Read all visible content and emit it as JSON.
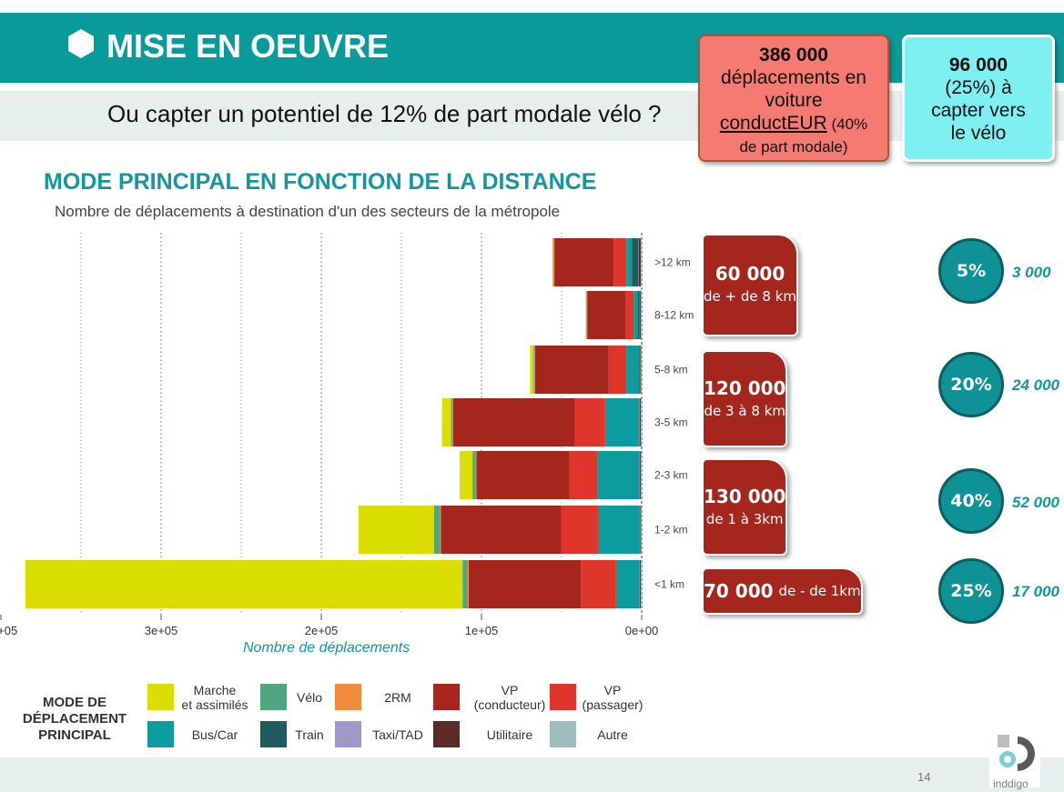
{
  "header": {
    "title": "MISE EN OEUVRE",
    "icon": "hexagon-icon"
  },
  "question": "Ou capter un potentiel de 12% de part modale vélo ?",
  "callouts": {
    "car": {
      "number": "386 000",
      "line1": "déplacements en",
      "line2": "voiture",
      "underlined": "conductEUR",
      "rest": " (40%",
      "line4": "de part modale)",
      "color": "#f57b72"
    },
    "bike": {
      "number": "96 000",
      "line1": "(25%) à",
      "line2": "capter vers",
      "line3": "le vélo",
      "color": "#7ef0f2"
    }
  },
  "chart_data": {
    "type": "bar",
    "orientation": "horizontal",
    "stacked": true,
    "title": "MODE PRINCIPAL EN FONCTION DE LA DISTANCE",
    "subtitle": "Nombre de déplacements à destination d'un des secteurs de la métropole",
    "xlabel": "Nombre de déplacements",
    "x_reversed": true,
    "xlim": [
      0,
      400000
    ],
    "x_ticks": [
      {
        "value": 400000,
        "label": "4e+05"
      },
      {
        "value": 300000,
        "label": "3e+05"
      },
      {
        "value": 200000,
        "label": "2e+05"
      },
      {
        "value": 100000,
        "label": "1e+05"
      },
      {
        "value": 0,
        "label": "0e+00"
      }
    ],
    "grid": "dotted vertical",
    "categories": [
      ">12 km",
      "8-12 km",
      "5-8 km",
      "3-5 km",
      "2-3 km",
      "1-2 km",
      "<1 km"
    ],
    "series": [
      {
        "name": "Autre",
        "color": "#9fbdbd",
        "values": [
          600,
          500,
          400,
          600,
          500,
          400,
          500
        ]
      },
      {
        "name": "Utilitaire",
        "color": "#5c2a27",
        "values": [
          1200,
          600,
          500,
          700,
          600,
          500,
          600
        ]
      },
      {
        "name": "Taxi/TAD",
        "color": "#9e99c6",
        "values": [
          200,
          200,
          200,
          200,
          200,
          200,
          200
        ]
      },
      {
        "name": "Train",
        "color": "#1f5a5e",
        "values": [
          4000,
          1200,
          500,
          300,
          300,
          200,
          200
        ]
      },
      {
        "name": "Bus/Car",
        "color": "#0c9c9e",
        "values": [
          3500,
          2500,
          8000,
          21000,
          26000,
          26000,
          14500
        ]
      },
      {
        "name": "VP\n(passager)",
        "color": "#e0352b",
        "values": [
          8000,
          5000,
          11000,
          19000,
          17500,
          23000,
          22000
        ]
      },
      {
        "name": "VP\n(conducteur)",
        "color": "#a5261c",
        "values": [
          37000,
          24000,
          46000,
          76000,
          58000,
          75000,
          70000
        ]
      },
      {
        "name": "2RM",
        "color": "#f08c3a",
        "values": [
          600,
          500,
          600,
          500,
          500,
          400,
          800
        ]
      },
      {
        "name": "Vélo",
        "color": "#4ea57f",
        "values": [
          300,
          200,
          500,
          800,
          2000,
          4000,
          3000
        ]
      },
      {
        "name": "Marche\net assimilés",
        "color": "#d9dd00",
        "values": [
          200,
          300,
          2000,
          5500,
          8000,
          47000,
          273000
        ]
      }
    ]
  },
  "distance_boxes": [
    {
      "big": "60 000",
      "small": "de + de 8 km"
    },
    {
      "big": "120 000",
      "small": "de 3 à 8 km"
    },
    {
      "big": "130 000",
      "small": "de 1 à 3km"
    },
    {
      "big": "70 000",
      "small": "de - de 1km"
    }
  ],
  "circles": [
    {
      "pct": "5%",
      "value": "3 000"
    },
    {
      "pct": "20%",
      "value": "24 000"
    },
    {
      "pct": "40%",
      "value": "52 000"
    },
    {
      "pct": "25%",
      "value": "17 000"
    }
  ],
  "legend": {
    "title_1": "MODE DE",
    "title_2": "DÉPLACEMENT",
    "title_3": "PRINCIPAL",
    "items": [
      {
        "label": "Marche\net assimilés",
        "color": "#d9dd00"
      },
      {
        "label": "Vélo",
        "color": "#4ea57f"
      },
      {
        "label": "2RM",
        "color": "#f08c3a"
      },
      {
        "label": "VP\n(conducteur)",
        "color": "#a5261c"
      },
      {
        "label": "VP\n(passager)",
        "color": "#e0352b"
      },
      {
        "label": "Bus/Car",
        "color": "#0c9c9e"
      },
      {
        "label": "Train",
        "color": "#1f5a5e"
      },
      {
        "label": "Taxi/TAD",
        "color": "#9e99c6"
      },
      {
        "label": "Utilitaire",
        "color": "#5c2a27"
      },
      {
        "label": "Autre",
        "color": "#9fbdbd"
      }
    ]
  },
  "footer": {
    "page": "14",
    "logo": "inddigo"
  }
}
